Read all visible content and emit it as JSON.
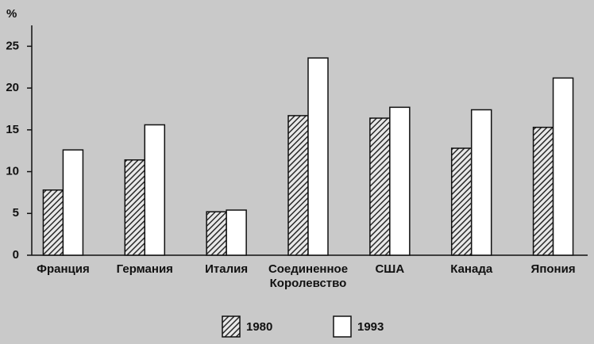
{
  "chart_data": {
    "type": "bar",
    "y_label": "%",
    "categories": [
      "Франция",
      "Германия",
      "Италия",
      "Соединенное Королевство",
      "США",
      "Канада",
      "Япония"
    ],
    "series": [
      {
        "name": "1980",
        "color": "#2a2a2a",
        "hatched": true,
        "values": [
          7.8,
          11.4,
          5.2,
          16.7,
          16.4,
          12.8,
          15.3
        ]
      },
      {
        "name": "1993",
        "color": "#ffffff",
        "hatched": false,
        "values": [
          12.6,
          15.6,
          5.4,
          23.6,
          17.7,
          17.4,
          21.2
        ]
      }
    ],
    "ylim": [
      0,
      27.5
    ],
    "yticks": [
      0,
      5,
      10,
      15,
      20,
      25
    ],
    "legend": "bottom"
  }
}
